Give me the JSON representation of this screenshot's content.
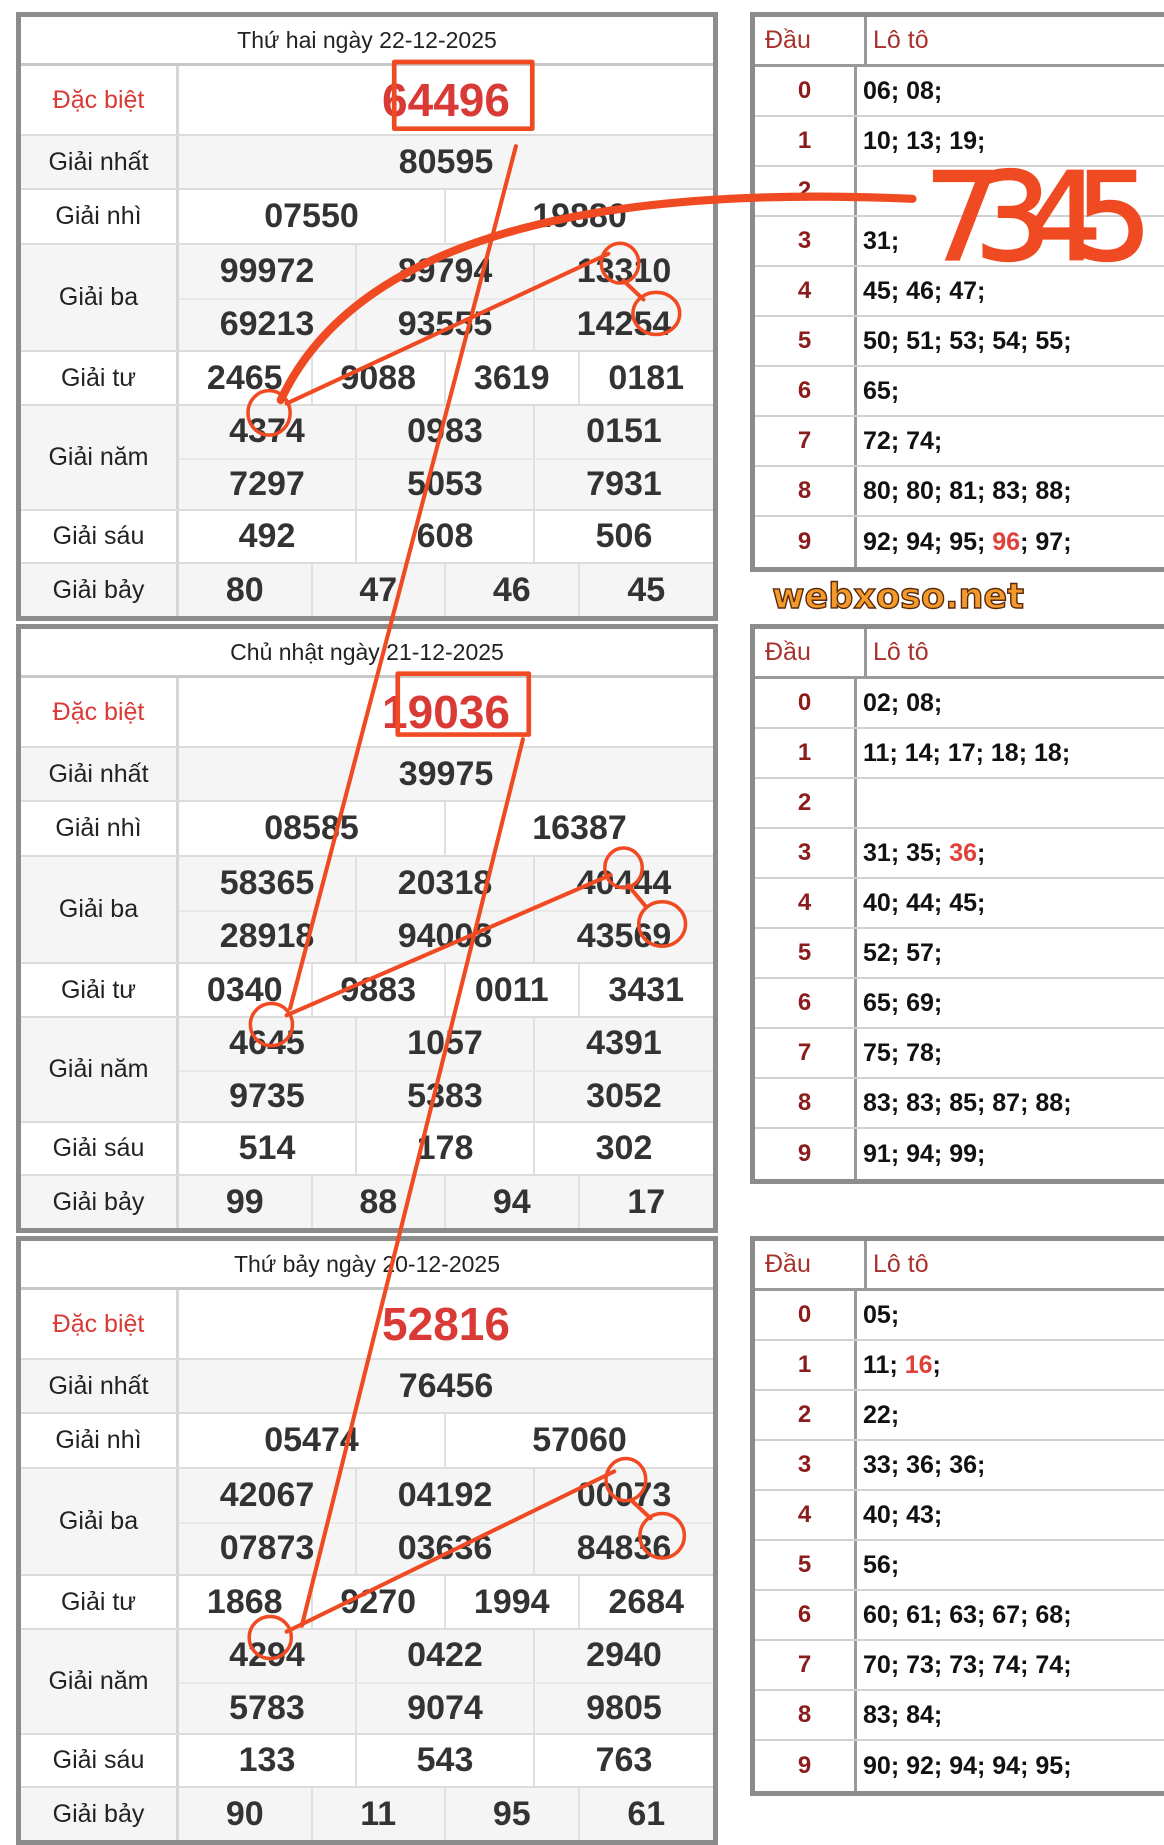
{
  "watermark": "webxoso.net",
  "annotation_text": "7345",
  "colors": {
    "special": "#d93a36",
    "annotation": "#f04a23",
    "head": "#8b1c1c",
    "border": "#8c8c8c"
  },
  "labels": {
    "dac_biet": "Đặc biệt",
    "nhat": "Giải nhất",
    "nhi": "Giải nhì",
    "ba": "Giải ba",
    "tu": "Giải tư",
    "nam": "Giải năm",
    "sau": "Giải sáu",
    "bay": "Giải bảy"
  },
  "loto_header": {
    "dau": "Đầu",
    "loto": "Lô tô"
  },
  "draws": [
    {
      "title": "Thứ hai ngày 22-12-2025",
      "dac_biet": "64496",
      "nhat": [
        "80595"
      ],
      "nhi": [
        "07550",
        "19880"
      ],
      "ba": [
        "99972",
        "89794",
        "13310",
        "69213",
        "93555",
        "14254"
      ],
      "tu": [
        "2465",
        "9088",
        "3619",
        "0181"
      ],
      "nam": [
        "4374",
        "0983",
        "0151",
        "7297",
        "5053",
        "7931"
      ],
      "sau": [
        "492",
        "608",
        "506"
      ],
      "bay": [
        "80",
        "47",
        "46",
        "45"
      ],
      "loto": [
        {
          "dau": "0",
          "values": [
            {
              "v": "06"
            },
            {
              "v": "08"
            }
          ]
        },
        {
          "dau": "1",
          "values": [
            {
              "v": "10"
            },
            {
              "v": "13"
            },
            {
              "v": "19"
            }
          ]
        },
        {
          "dau": "2",
          "values": []
        },
        {
          "dau": "3",
          "values": [
            {
              "v": "31"
            }
          ]
        },
        {
          "dau": "4",
          "values": [
            {
              "v": "45"
            },
            {
              "v": "46"
            },
            {
              "v": "47"
            }
          ]
        },
        {
          "dau": "5",
          "values": [
            {
              "v": "50"
            },
            {
              "v": "51"
            },
            {
              "v": "53"
            },
            {
              "v": "54"
            },
            {
              "v": "55"
            }
          ]
        },
        {
          "dau": "6",
          "values": [
            {
              "v": "65"
            }
          ]
        },
        {
          "dau": "7",
          "values": [
            {
              "v": "72"
            },
            {
              "v": "74"
            }
          ]
        },
        {
          "dau": "8",
          "values": [
            {
              "v": "80"
            },
            {
              "v": "80"
            },
            {
              "v": "81"
            },
            {
              "v": "83"
            },
            {
              "v": "88"
            }
          ]
        },
        {
          "dau": "9",
          "values": [
            {
              "v": "92"
            },
            {
              "v": "94"
            },
            {
              "v": "95"
            },
            {
              "v": "96",
              "special": true
            },
            {
              "v": "97"
            }
          ]
        }
      ]
    },
    {
      "title": "Chủ nhật ngày 21-12-2025",
      "dac_biet": "19036",
      "nhat": [
        "39975"
      ],
      "nhi": [
        "08585",
        "16387"
      ],
      "ba": [
        "58365",
        "20318",
        "40444",
        "28918",
        "94008",
        "43569"
      ],
      "tu": [
        "0340",
        "9883",
        "0011",
        "3431"
      ],
      "nam": [
        "4645",
        "1057",
        "4391",
        "9735",
        "5383",
        "3052"
      ],
      "sau": [
        "514",
        "178",
        "302"
      ],
      "bay": [
        "99",
        "88",
        "94",
        "17"
      ],
      "loto": [
        {
          "dau": "0",
          "values": [
            {
              "v": "02"
            },
            {
              "v": "08"
            }
          ]
        },
        {
          "dau": "1",
          "values": [
            {
              "v": "11"
            },
            {
              "v": "14"
            },
            {
              "v": "17"
            },
            {
              "v": "18"
            },
            {
              "v": "18"
            }
          ]
        },
        {
          "dau": "2",
          "values": []
        },
        {
          "dau": "3",
          "values": [
            {
              "v": "31"
            },
            {
              "v": "35"
            },
            {
              "v": "36",
              "special": true
            }
          ]
        },
        {
          "dau": "4",
          "values": [
            {
              "v": "40"
            },
            {
              "v": "44"
            },
            {
              "v": "45"
            }
          ]
        },
        {
          "dau": "5",
          "values": [
            {
              "v": "52"
            },
            {
              "v": "57"
            }
          ]
        },
        {
          "dau": "6",
          "values": [
            {
              "v": "65"
            },
            {
              "v": "69"
            }
          ]
        },
        {
          "dau": "7",
          "values": [
            {
              "v": "75"
            },
            {
              "v": "78"
            }
          ]
        },
        {
          "dau": "8",
          "values": [
            {
              "v": "83"
            },
            {
              "v": "83"
            },
            {
              "v": "85"
            },
            {
              "v": "87"
            },
            {
              "v": "88"
            }
          ]
        },
        {
          "dau": "9",
          "values": [
            {
              "v": "91"
            },
            {
              "v": "94"
            },
            {
              "v": "99"
            }
          ]
        }
      ]
    },
    {
      "title": "Thứ bảy ngày 20-12-2025",
      "dac_biet": "52816",
      "nhat": [
        "76456"
      ],
      "nhi": [
        "05474",
        "57060"
      ],
      "ba": [
        "42067",
        "04192",
        "00073",
        "07873",
        "03636",
        "84836"
      ],
      "tu": [
        "1868",
        "9270",
        "1994",
        "2684"
      ],
      "nam": [
        "4294",
        "0422",
        "2940",
        "5783",
        "9074",
        "9805"
      ],
      "sau": [
        "133",
        "543",
        "763"
      ],
      "bay": [
        "90",
        "11",
        "95",
        "61"
      ],
      "loto": [
        {
          "dau": "0",
          "values": [
            {
              "v": "05"
            }
          ]
        },
        {
          "dau": "1",
          "values": [
            {
              "v": "11"
            },
            {
              "v": "16",
              "special": true
            }
          ]
        },
        {
          "dau": "2",
          "values": [
            {
              "v": "22"
            }
          ]
        },
        {
          "dau": "3",
          "values": [
            {
              "v": "33"
            },
            {
              "v": "36"
            },
            {
              "v": "36"
            }
          ]
        },
        {
          "dau": "4",
          "values": [
            {
              "v": "40"
            },
            {
              "v": "43"
            }
          ]
        },
        {
          "dau": "5",
          "values": [
            {
              "v": "56"
            }
          ]
        },
        {
          "dau": "6",
          "values": [
            {
              "v": "60"
            },
            {
              "v": "61"
            },
            {
              "v": "63"
            },
            {
              "v": "67"
            },
            {
              "v": "68"
            }
          ]
        },
        {
          "dau": "7",
          "values": [
            {
              "v": "70"
            },
            {
              "v": "73"
            },
            {
              "v": "73"
            },
            {
              "v": "74"
            },
            {
              "v": "74"
            }
          ]
        },
        {
          "dau": "8",
          "values": [
            {
              "v": "83"
            },
            {
              "v": "84"
            }
          ]
        },
        {
          "dau": "9",
          "values": [
            {
              "v": "90"
            },
            {
              "v": "92"
            },
            {
              "v": "94"
            },
            {
              "v": "94"
            },
            {
              "v": "95"
            }
          ]
        }
      ]
    }
  ]
}
